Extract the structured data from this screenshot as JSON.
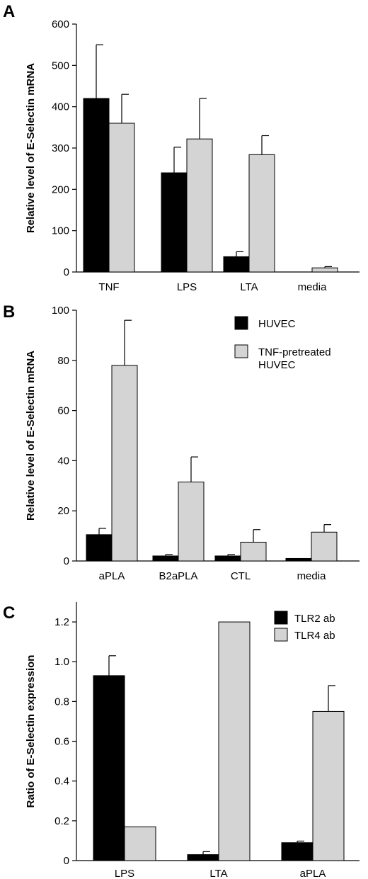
{
  "colors": {
    "black": "#000000",
    "gray": "#d4d4d4"
  },
  "chart_data": [
    {
      "panel": "A",
      "type": "bar",
      "ylabel": "Relative level of E-Selectin mRNA",
      "ylim": [
        0,
        600
      ],
      "yticks": [
        0,
        100,
        200,
        300,
        400,
        500,
        600
      ],
      "ytick_labels": [
        "0",
        "100",
        "200",
        "300",
        "400",
        "500",
        "600"
      ],
      "categories": [
        "TNF",
        "LPS",
        "LTA",
        "media"
      ],
      "series": [
        {
          "color": "black",
          "values": [
            420,
            240,
            37,
            0
          ],
          "errors": [
            130,
            62,
            12,
            0
          ]
        },
        {
          "color": "gray",
          "values": [
            360,
            322,
            284,
            10
          ],
          "errors": [
            70,
            98,
            46,
            3
          ]
        }
      ],
      "legend": null
    },
    {
      "panel": "B",
      "type": "bar",
      "ylabel": "Relative level of E-Selectin mRNA",
      "ylim": [
        0,
        100
      ],
      "yticks": [
        0,
        20,
        40,
        60,
        80,
        100
      ],
      "ytick_labels": [
        "0",
        "20",
        "40",
        "60",
        "80",
        "100"
      ],
      "categories": [
        "aPLA",
        "B2aPLA",
        "CTL",
        "media"
      ],
      "series": [
        {
          "name": "HUVEC",
          "color": "black",
          "values": [
            10.5,
            2,
            2,
            1
          ],
          "errors": [
            2.5,
            0.6,
            0.6,
            0
          ]
        },
        {
          "name": "TNF-pretreated HUVEC",
          "color": "gray",
          "values": [
            78,
            31.5,
            7.5,
            11.5
          ],
          "errors": [
            18,
            10,
            5,
            3
          ]
        }
      ],
      "legend": {
        "placement": "top-right",
        "entries": [
          [
            "HUVEC"
          ],
          [
            "TNF-pretreated",
            "HUVEC"
          ]
        ]
      }
    },
    {
      "panel": "C",
      "type": "bar",
      "ylabel": "Ratio of E-Selectin expression",
      "ylim": [
        0,
        1.3
      ],
      "yticks": [
        0,
        0.2,
        0.4,
        0.6,
        0.8,
        1.0,
        1.2
      ],
      "ytick_labels": [
        "0",
        "0.2",
        "0.4",
        "0.6",
        "0.8",
        "1.0",
        "1.2"
      ],
      "categories": [
        "LPS",
        "LTA",
        "aPLA"
      ],
      "series": [
        {
          "name": "TLR2 ab",
          "color": "black",
          "values": [
            0.93,
            0.03,
            0.09
          ],
          "errors": [
            0.1,
            0.015,
            0.008
          ]
        },
        {
          "name": "TLR4 ab",
          "color": "gray",
          "values": [
            0.17,
            1.2,
            0.75
          ],
          "errors": [
            0,
            0,
            0.13
          ]
        }
      ],
      "legend": {
        "placement": "top-right",
        "entries": [
          [
            "TLR2 ab"
          ],
          [
            "TLR4 ab"
          ]
        ]
      }
    }
  ]
}
